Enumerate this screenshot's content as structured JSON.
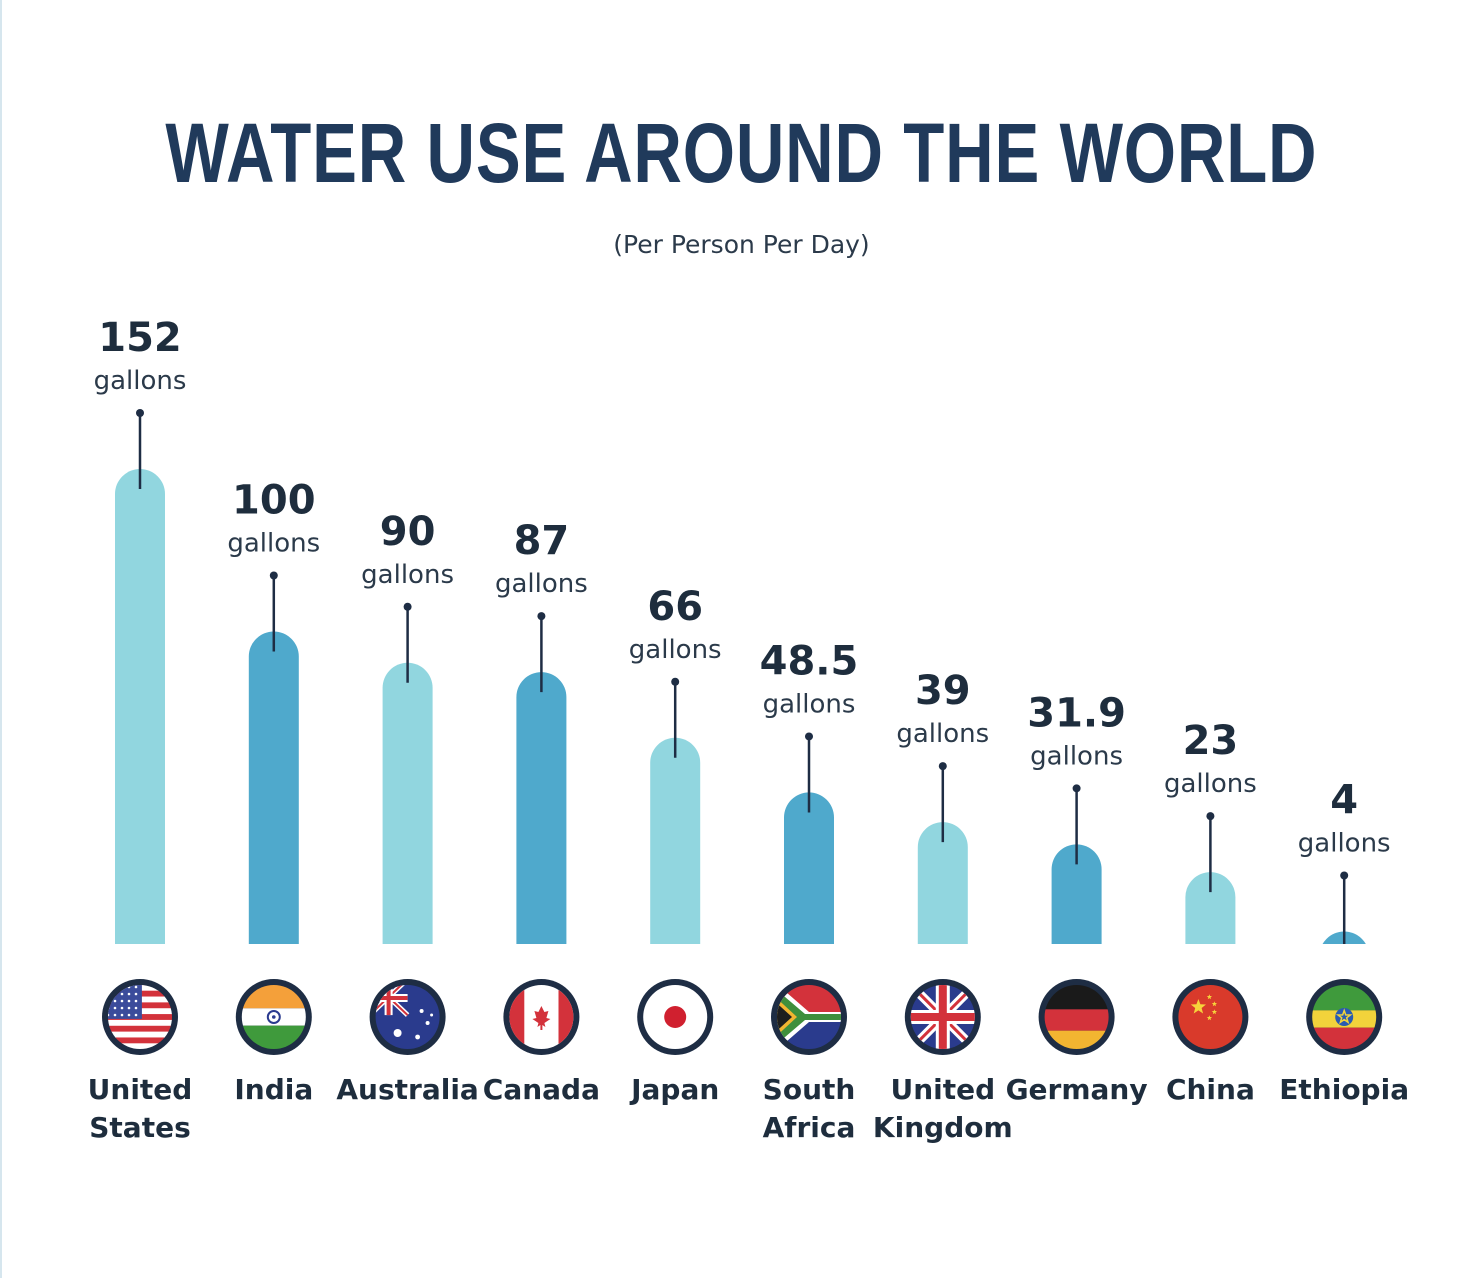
{
  "chart_data": {
    "type": "bar",
    "title": "WATER USE AROUND THE WORLD",
    "subtitle": "(Per Person Per Day)",
    "unit_label": "gallons",
    "categories": [
      [
        "United",
        "States"
      ],
      [
        "India"
      ],
      [
        "Australia"
      ],
      [
        "Canada"
      ],
      [
        "Japan"
      ],
      [
        "South",
        "Africa"
      ],
      [
        "United",
        "Kingdom"
      ],
      [
        "Germany"
      ],
      [
        "China"
      ],
      [
        "Ethiopia"
      ]
    ],
    "values": [
      152,
      100,
      90,
      87,
      66,
      48.5,
      39,
      31.9,
      23,
      4
    ],
    "value_labels": [
      "152",
      "100",
      "90",
      "87",
      "66",
      "48.5",
      "39",
      "31.9",
      "23",
      "4"
    ],
    "flags": [
      "usa-flag",
      "india-flag",
      "australia-flag",
      "canada-flag",
      "japan-flag",
      "south-africa-flag",
      "uk-flag",
      "germany-flag",
      "china-flag",
      "ethiopia-flag"
    ],
    "colors": {
      "bar_light": "#91d6df",
      "bar_dark": "#4fa9cc",
      "title": "#203a5b",
      "text": "#1e2d3d",
      "flag_ring": "#1e2d44"
    },
    "bar_color_pattern": [
      "light",
      "dark",
      "light",
      "dark",
      "light",
      "dark",
      "light",
      "dark",
      "light",
      "dark"
    ]
  }
}
